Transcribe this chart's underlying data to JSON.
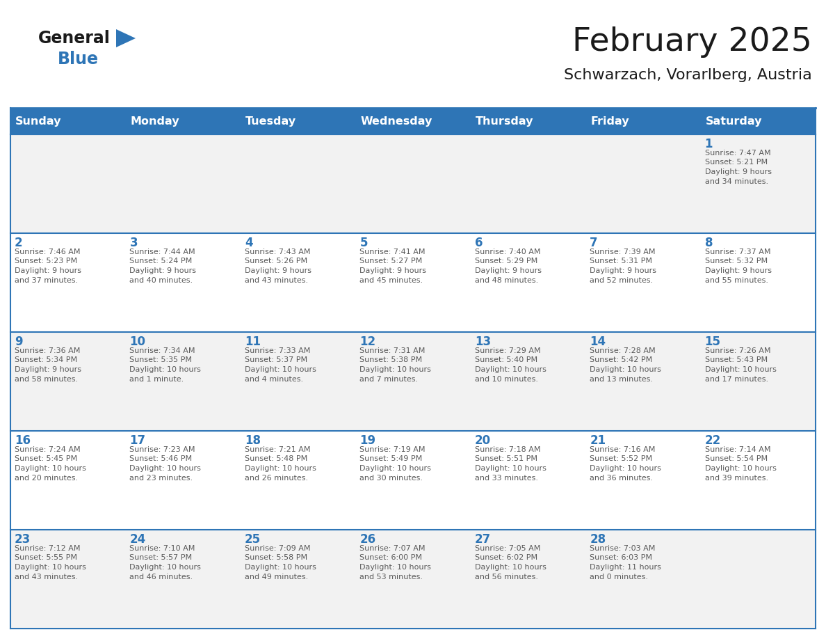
{
  "title": "February 2025",
  "subtitle": "Schwarzach, Vorarlberg, Austria",
  "header_bg": "#2E75B6",
  "header_text_color": "#FFFFFF",
  "cell_bg_odd": "#F2F2F2",
  "cell_bg_even": "#FFFFFF",
  "day_number_color": "#2E75B6",
  "cell_text_color": "#595959",
  "grid_line_color": "#2E75B6",
  "days_of_week": [
    "Sunday",
    "Monday",
    "Tuesday",
    "Wednesday",
    "Thursday",
    "Friday",
    "Saturday"
  ],
  "logo_general_color": "#1A1A1A",
  "logo_blue_color": "#2E75B6",
  "calendar_data": [
    [
      null,
      null,
      null,
      null,
      null,
      null,
      {
        "day": "1",
        "sunrise": "7:47 AM",
        "sunset": "5:21 PM",
        "daylight_line1": "9 hours",
        "daylight_line2": "and 34 minutes."
      }
    ],
    [
      {
        "day": "2",
        "sunrise": "7:46 AM",
        "sunset": "5:23 PM",
        "daylight_line1": "9 hours",
        "daylight_line2": "and 37 minutes."
      },
      {
        "day": "3",
        "sunrise": "7:44 AM",
        "sunset": "5:24 PM",
        "daylight_line1": "9 hours",
        "daylight_line2": "and 40 minutes."
      },
      {
        "day": "4",
        "sunrise": "7:43 AM",
        "sunset": "5:26 PM",
        "daylight_line1": "9 hours",
        "daylight_line2": "and 43 minutes."
      },
      {
        "day": "5",
        "sunrise": "7:41 AM",
        "sunset": "5:27 PM",
        "daylight_line1": "9 hours",
        "daylight_line2": "and 45 minutes."
      },
      {
        "day": "6",
        "sunrise": "7:40 AM",
        "sunset": "5:29 PM",
        "daylight_line1": "9 hours",
        "daylight_line2": "and 48 minutes."
      },
      {
        "day": "7",
        "sunrise": "7:39 AM",
        "sunset": "5:31 PM",
        "daylight_line1": "9 hours",
        "daylight_line2": "and 52 minutes."
      },
      {
        "day": "8",
        "sunrise": "7:37 AM",
        "sunset": "5:32 PM",
        "daylight_line1": "9 hours",
        "daylight_line2": "and 55 minutes."
      }
    ],
    [
      {
        "day": "9",
        "sunrise": "7:36 AM",
        "sunset": "5:34 PM",
        "daylight_line1": "9 hours",
        "daylight_line2": "and 58 minutes."
      },
      {
        "day": "10",
        "sunrise": "7:34 AM",
        "sunset": "5:35 PM",
        "daylight_line1": "10 hours",
        "daylight_line2": "and 1 minute."
      },
      {
        "day": "11",
        "sunrise": "7:33 AM",
        "sunset": "5:37 PM",
        "daylight_line1": "10 hours",
        "daylight_line2": "and 4 minutes."
      },
      {
        "day": "12",
        "sunrise": "7:31 AM",
        "sunset": "5:38 PM",
        "daylight_line1": "10 hours",
        "daylight_line2": "and 7 minutes."
      },
      {
        "day": "13",
        "sunrise": "7:29 AM",
        "sunset": "5:40 PM",
        "daylight_line1": "10 hours",
        "daylight_line2": "and 10 minutes."
      },
      {
        "day": "14",
        "sunrise": "7:28 AM",
        "sunset": "5:42 PM",
        "daylight_line1": "10 hours",
        "daylight_line2": "and 13 minutes."
      },
      {
        "day": "15",
        "sunrise": "7:26 AM",
        "sunset": "5:43 PM",
        "daylight_line1": "10 hours",
        "daylight_line2": "and 17 minutes."
      }
    ],
    [
      {
        "day": "16",
        "sunrise": "7:24 AM",
        "sunset": "5:45 PM",
        "daylight_line1": "10 hours",
        "daylight_line2": "and 20 minutes."
      },
      {
        "day": "17",
        "sunrise": "7:23 AM",
        "sunset": "5:46 PM",
        "daylight_line1": "10 hours",
        "daylight_line2": "and 23 minutes."
      },
      {
        "day": "18",
        "sunrise": "7:21 AM",
        "sunset": "5:48 PM",
        "daylight_line1": "10 hours",
        "daylight_line2": "and 26 minutes."
      },
      {
        "day": "19",
        "sunrise": "7:19 AM",
        "sunset": "5:49 PM",
        "daylight_line1": "10 hours",
        "daylight_line2": "and 30 minutes."
      },
      {
        "day": "20",
        "sunrise": "7:18 AM",
        "sunset": "5:51 PM",
        "daylight_line1": "10 hours",
        "daylight_line2": "and 33 minutes."
      },
      {
        "day": "21",
        "sunrise": "7:16 AM",
        "sunset": "5:52 PM",
        "daylight_line1": "10 hours",
        "daylight_line2": "and 36 minutes."
      },
      {
        "day": "22",
        "sunrise": "7:14 AM",
        "sunset": "5:54 PM",
        "daylight_line1": "10 hours",
        "daylight_line2": "and 39 minutes."
      }
    ],
    [
      {
        "day": "23",
        "sunrise": "7:12 AM",
        "sunset": "5:55 PM",
        "daylight_line1": "10 hours",
        "daylight_line2": "and 43 minutes."
      },
      {
        "day": "24",
        "sunrise": "7:10 AM",
        "sunset": "5:57 PM",
        "daylight_line1": "10 hours",
        "daylight_line2": "and 46 minutes."
      },
      {
        "day": "25",
        "sunrise": "7:09 AM",
        "sunset": "5:58 PM",
        "daylight_line1": "10 hours",
        "daylight_line2": "and 49 minutes."
      },
      {
        "day": "26",
        "sunrise": "7:07 AM",
        "sunset": "6:00 PM",
        "daylight_line1": "10 hours",
        "daylight_line2": "and 53 minutes."
      },
      {
        "day": "27",
        "sunrise": "7:05 AM",
        "sunset": "6:02 PM",
        "daylight_line1": "10 hours",
        "daylight_line2": "and 56 minutes."
      },
      {
        "day": "28",
        "sunrise": "7:03 AM",
        "sunset": "6:03 PM",
        "daylight_line1": "11 hours",
        "daylight_line2": "and 0 minutes."
      },
      null
    ]
  ]
}
